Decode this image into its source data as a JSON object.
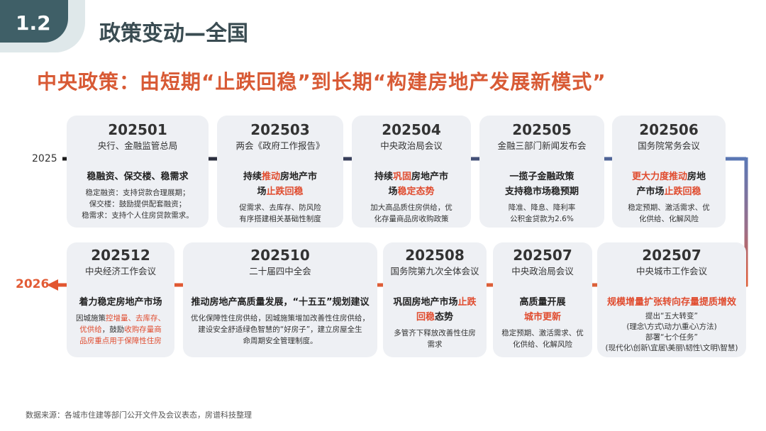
{
  "section": {
    "number": "1.2",
    "title": "政策变动—全国"
  },
  "headline": "中央政策：由短期“止跌回稳”到长期“构建房地产发展新模式”",
  "timeline": {
    "year_start": "2025",
    "year_end": "2026"
  },
  "row1": [
    {
      "date": "202501",
      "org": "央行、金融监管总局",
      "main_html": "稳融资、保交楼、稳需求",
      "detail_html": "稳定融资：支持贷款合理展期；<br>保交楼：鼓励提供配套融资；<br>稳需求：支持个人住房贷款需求。"
    },
    {
      "date": "202503",
      "org": "两会《政府工作报告》",
      "main_html": "持续<span class=\"hl\">推动</span>房地产市<br>场<span class=\"hl\">止跌回稳</span>",
      "detail_html": "促需求、去库存、防风险<br>有序搭建相关基础性制度"
    },
    {
      "date": "202504",
      "org": "中央政治局会议",
      "main_html": "持续<span class=\"hl\">巩固</span>房地产市<br>场<span class=\"hl\">稳定态势</span>",
      "detail_html": "加大高品质住房供给，优<br>化存量商品房收购政策"
    },
    {
      "date": "202505",
      "org": "金融三部门新闻发布会",
      "main_html": "一揽子金融政策<br>支持稳市场稳预期",
      "detail_html": "降准、降息、降利率<br>公积金贷款为2.6%"
    },
    {
      "date": "202506",
      "org": "国务院常务会议",
      "main_html": "<span class=\"hl\">更大力度推动</span>房地<br>产市场<span class=\"hl\">止跌回稳</span>",
      "detail_html": "稳定预期、激活需求、优<br>化供给、化解风险"
    }
  ],
  "row2": [
    {
      "date": "202512",
      "org": "中央经济工作会议",
      "main_html": "着力稳定房地产市场",
      "detail_html": "因城施策<span class=\"hl\">控增量、去库存、<br>优供给</span>，鼓励<span class=\"hl\">收购存量商<br>品房重点用于保障性住房</span>"
    },
    {
      "date": "202510",
      "org": "二十届四中全会",
      "main_html": "推动房地产高质量发展，“十五五”规划建议",
      "detail_html": "优化保障性住房供给，因城施策增加改善性住房供给，<br>建设安全舒适绿色智慧的“好房子”，建立房屋全生<br>命周期安全管理制度。"
    },
    {
      "date": "202508",
      "org": "国务院第九次全体会议",
      "main_html": "巩固房地产市场<span class=\"hl\">止跌<br>回稳</span>态势",
      "detail_html": "多管齐下释放改善性住房<br>需求"
    },
    {
      "date": "202507",
      "org": "中央政治局会议",
      "main_html": "高质量开展<br><span class=\"hl\">城市更新</span>",
      "detail_html": "稳定预期、激活需求、优<br>化供给、化解风险"
    },
    {
      "date": "202507",
      "org": "中央城市工作会议",
      "main_html": "<span class=\"hl\">规模增量扩张转向存量提质增效</span>",
      "detail_html": "提出“五大转变”<br>(理念\\方式\\动力\\重心\\方法)<br>部署“七个任务”<br>(现代化\\创新\\宜居\\美丽\\韧性\\文明\\智慧)"
    }
  ],
  "footnote": "数据来源：各城市住建等部门公开文件及会议表态，房谱科技整理",
  "colors": {
    "accent": "#e25b35",
    "dark": "#3f5f67",
    "line_start": "#1c1c1c",
    "line_blue": "#4f6ea8"
  }
}
